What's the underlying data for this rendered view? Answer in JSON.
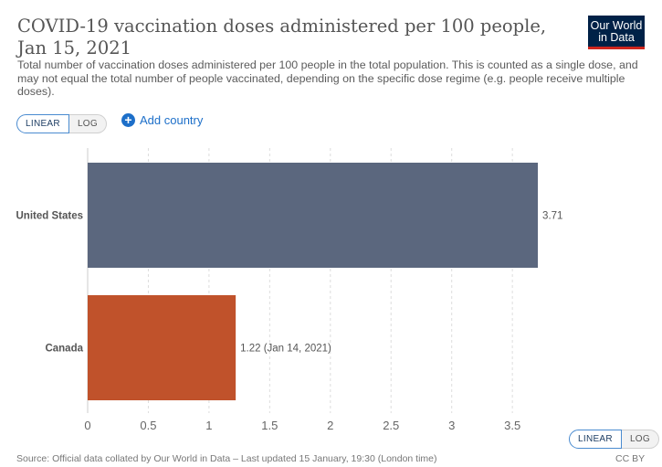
{
  "header": {
    "title": "COVID-19 vaccination doses administered per 100 people, Jan 15, 2021",
    "subtitle": "Total number of vaccination doses administered per 100 people in the total population. This is counted as a single dose, and may not equal the total number of people vaccinated, depending on the specific dose regime (e.g. people receive multiple doses).",
    "logo_line1": "Our World",
    "logo_line2": "in Data"
  },
  "controls": {
    "linear_label": "LINEAR",
    "log_label": "LOG",
    "add_country_label": "Add country",
    "selected_scale": "linear"
  },
  "footer": {
    "source": "Source: Official data collated by Our World in Data – Last updated 15 January, 19:30 (London time)",
    "license": "CC BY"
  },
  "colors": {
    "united_states": "#5b677e",
    "canada": "#c0522b",
    "logo_bg": "#002147",
    "logo_accent": "#ce261e",
    "link": "#1d6fc9"
  },
  "chart_data": {
    "type": "bar",
    "orientation": "horizontal",
    "categories": [
      "United States",
      "Canada"
    ],
    "values": [
      3.71,
      1.22
    ],
    "value_labels": [
      "3.71",
      "1.22 (Jan 14, 2021)"
    ],
    "colors": [
      "#5b677e",
      "#c0522b"
    ],
    "xticks": [
      0,
      0.5,
      1,
      1.5,
      2,
      2.5,
      3,
      3.5
    ],
    "xtick_labels": [
      "0",
      "0.5",
      "1",
      "1.5",
      "2",
      "2.5",
      "3",
      "3.5"
    ],
    "xlim": [
      0,
      3.75
    ],
    "grid": "vertical dashed"
  }
}
